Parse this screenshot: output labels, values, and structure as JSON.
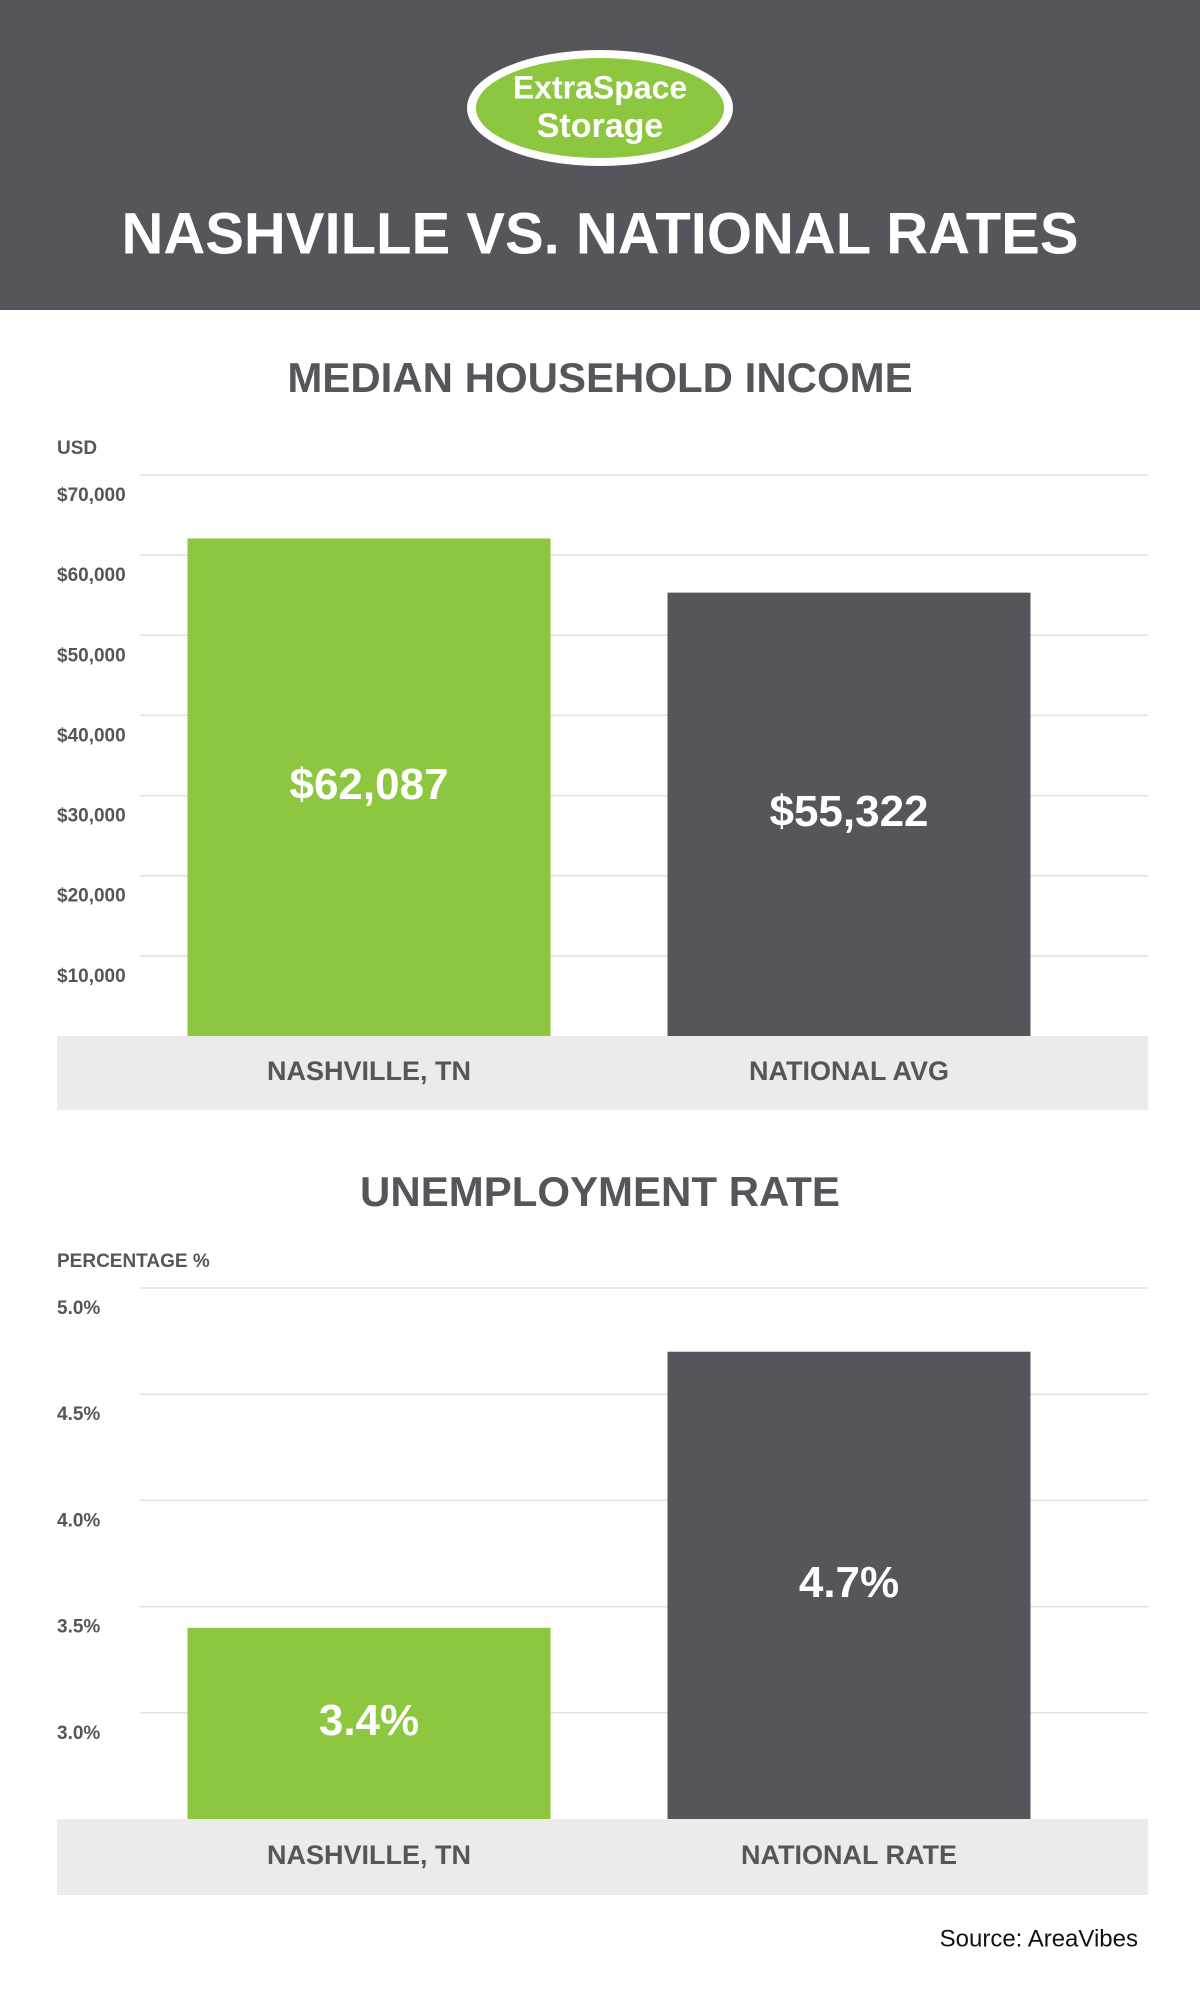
{
  "header": {
    "logo_line1": "ExtraSpace",
    "logo_line2": "Storage",
    "title": "NASHVILLE VS. NATIONAL RATES"
  },
  "chart_data": [
    {
      "type": "bar",
      "title": "MEDIAN HOUSEHOLD INCOME",
      "y_label": "USD",
      "categories": [
        "NASHVILLE, TN",
        "NATIONAL AVG"
      ],
      "values": [
        62087,
        55322
      ],
      "value_labels": [
        "$62,087",
        "$55,322"
      ],
      "colors": [
        "#8dc63f",
        "#55565b"
      ],
      "ylim": [
        0,
        70000
      ],
      "yticks": [
        {
          "value": 10000,
          "label": "$10,000"
        },
        {
          "value": 20000,
          "label": "$20,000"
        },
        {
          "value": 30000,
          "label": "$30,000"
        },
        {
          "value": 40000,
          "label": "$40,000"
        },
        {
          "value": 50000,
          "label": "$50,000"
        },
        {
          "value": 60000,
          "label": "$60,000"
        },
        {
          "value": 70000,
          "label": "$70,000"
        }
      ],
      "grid": true
    },
    {
      "type": "bar",
      "title": "UNEMPLOYMENT RATE",
      "y_label": "PERCENTAGE %",
      "categories": [
        "NASHVILLE, TN",
        "NATIONAL RATE"
      ],
      "values": [
        3.4,
        4.7
      ],
      "value_labels": [
        "3.4%",
        "4.7%"
      ],
      "colors": [
        "#8dc63f",
        "#55565b"
      ],
      "ylim": [
        2.5,
        5.0
      ],
      "yticks": [
        {
          "value": 3.0,
          "label": "3.0%"
        },
        {
          "value": 3.5,
          "label": "3.5%"
        },
        {
          "value": 4.0,
          "label": "4.0%"
        },
        {
          "value": 4.5,
          "label": "4.5%"
        },
        {
          "value": 5.0,
          "label": "5.0%"
        }
      ],
      "grid": true
    }
  ],
  "source": "Source: AreaVibes"
}
